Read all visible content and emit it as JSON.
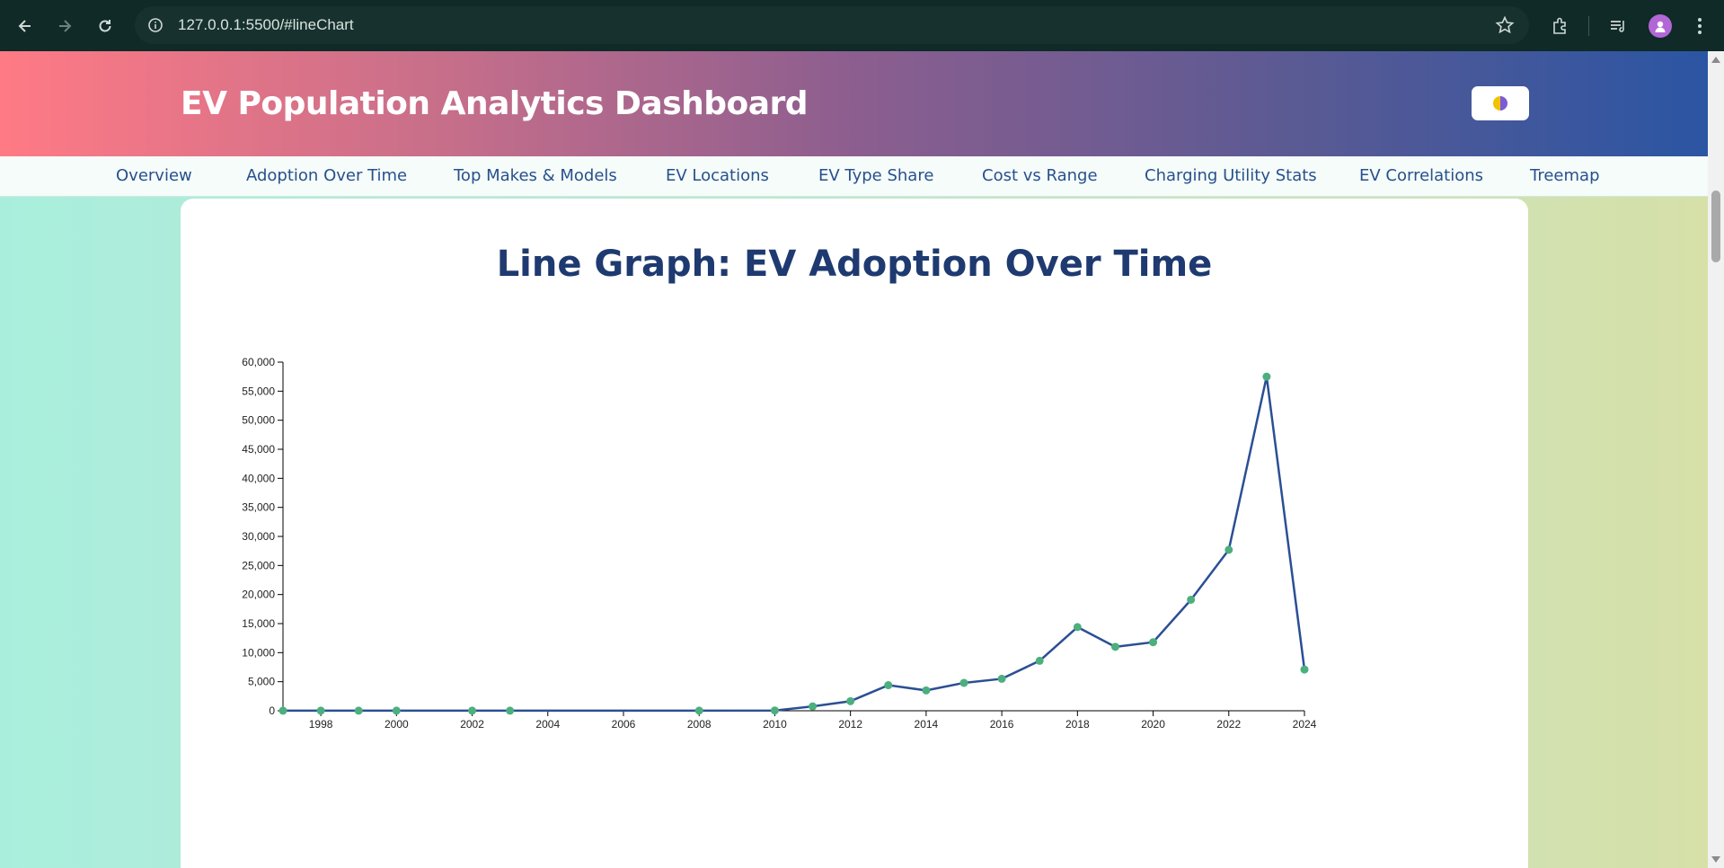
{
  "browser": {
    "url": "127.0.0.1:5500/#lineChart",
    "icons": [
      "back-arrow-icon",
      "forward-arrow-icon",
      "reload-icon",
      "info-icon",
      "bookmark-star-icon",
      "extensions-icon",
      "media-queue-icon",
      "profile-avatar-icon",
      "more-vert-icon"
    ]
  },
  "header": {
    "title": "EV Population Analytics Dashboard",
    "theme_toggle_icon": "half-moon-icon"
  },
  "nav": {
    "items": [
      {
        "label": "Overview"
      },
      {
        "label": "Adoption Over Time"
      },
      {
        "label": "Top Makes & Models"
      },
      {
        "label": "EV Locations"
      },
      {
        "label": "EV Type Share"
      },
      {
        "label": "Cost vs Range"
      },
      {
        "label": "Charging Utility Stats"
      },
      {
        "label": "EV Correlations"
      },
      {
        "label": "Treemap"
      }
    ]
  },
  "main": {
    "title": "Line Graph: EV Adoption Over Time"
  },
  "colors": {
    "line": "#2b4f94",
    "point": "#4caf7e",
    "title": "#1e3a70",
    "nav_text": "#27508e"
  },
  "chart_data": {
    "type": "line",
    "title": "Line Graph: EV Adoption Over Time",
    "xlabel": "",
    "ylabel": "",
    "xlim": [
      1997,
      2024
    ],
    "ylim": [
      0,
      60000
    ],
    "xticks": [
      1998,
      2000,
      2002,
      2004,
      2006,
      2008,
      2010,
      2012,
      2014,
      2016,
      2018,
      2020,
      2022,
      2024
    ],
    "yticks": [
      0,
      5000,
      10000,
      15000,
      20000,
      25000,
      30000,
      35000,
      40000,
      45000,
      50000,
      55000,
      60000
    ],
    "grid": false,
    "x": [
      1997,
      1998,
      1999,
      2000,
      2002,
      2003,
      2008,
      2010,
      2011,
      2012,
      2013,
      2014,
      2015,
      2016,
      2017,
      2018,
      2019,
      2020,
      2021,
      2022,
      2023,
      2024
    ],
    "y": [
      10,
      10,
      10,
      10,
      10,
      10,
      20,
      40,
      750,
      1650,
      4400,
      3500,
      4800,
      5500,
      8600,
      14400,
      11000,
      11800,
      19100,
      27700,
      57500,
      7100
    ]
  }
}
